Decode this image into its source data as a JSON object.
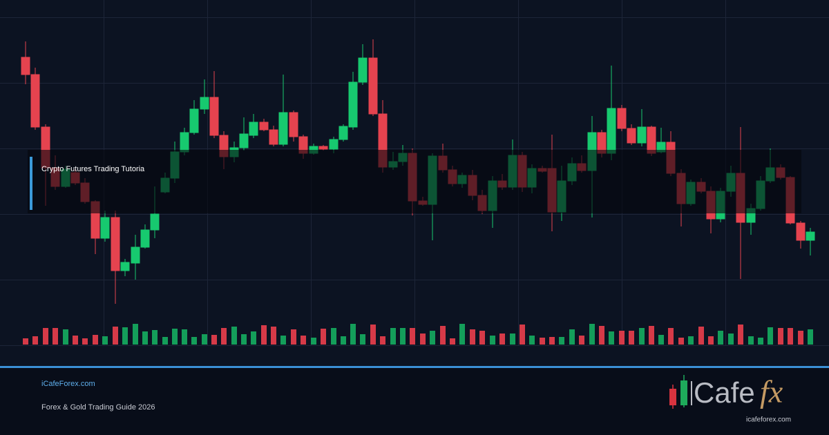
{
  "banner": {
    "title": "Crypto Futures Trading Tutoria",
    "site": "iCafeForex.com",
    "subtitle": "Forex & Gold Trading Guide 2026"
  },
  "logo": {
    "wordmark": "Cafe",
    "accent": "fx",
    "url": "icafeforex.com"
  }
}
